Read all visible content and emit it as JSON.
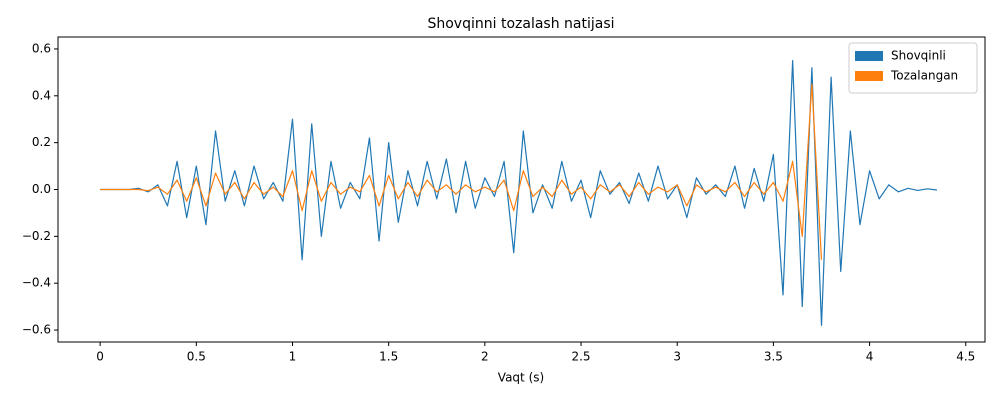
{
  "chart_data": {
    "type": "line",
    "title": "Shovqinni tozalash natijasi",
    "xlabel": "Vaqt (s)",
    "xlim": [
      -0.219,
      4.6
    ],
    "ylim": [
      -0.651,
      0.651
    ],
    "xticks": [
      0,
      0.5,
      1,
      1.5,
      2,
      2.5,
      3,
      3.5,
      4,
      4.5
    ],
    "yticks": [
      {
        "value": -0.6,
        "label": "−0.6"
      },
      {
        "value": -0.4,
        "label": "−0.4"
      },
      {
        "value": -0.2,
        "label": "−0.2"
      },
      {
        "value": 0,
        "label": "0.0"
      },
      0.2,
      0.4,
      0.6
    ],
    "legend": "upper right",
    "series": [
      {
        "name": "Shovqinli",
        "color": "#1f77b4",
        "x": [
          0,
          0.05,
          0.1,
          0.15,
          0.2,
          0.25,
          0.3,
          0.35,
          0.4,
          0.45,
          0.5,
          0.55,
          0.6,
          0.65,
          0.7,
          0.75,
          0.8,
          0.85,
          0.9,
          0.95,
          1,
          1.05,
          1.1,
          1.15,
          1.2,
          1.25,
          1.3,
          1.35,
          1.4,
          1.45,
          1.5,
          1.55,
          1.6,
          1.65,
          1.7,
          1.75,
          1.8,
          1.85,
          1.9,
          1.95,
          2,
          2.05,
          2.1,
          2.15,
          2.2,
          2.25,
          2.3,
          2.35,
          2.4,
          2.45,
          2.5,
          2.55,
          2.6,
          2.65,
          2.7,
          2.75,
          2.8,
          2.85,
          2.9,
          2.95,
          3,
          3.05,
          3.1,
          3.15,
          3.2,
          3.25,
          3.3,
          3.35,
          3.4,
          3.45,
          3.5,
          3.55,
          3.6,
          3.65,
          3.7,
          3.75,
          3.8,
          3.85,
          3.9,
          3.95,
          4,
          4.05,
          4.1,
          4.15,
          4.2,
          4.25,
          4.3,
          4.35
        ],
        "values": [
          0,
          0,
          0,
          0,
          0.005,
          -0.01,
          0.02,
          -0.07,
          0.12,
          -0.12,
          0.1,
          -0.15,
          0.25,
          -0.05,
          0.08,
          -0.07,
          0.1,
          -0.04,
          0.03,
          -0.05,
          0.3,
          -0.3,
          0.28,
          -0.2,
          0.12,
          -0.08,
          0.03,
          -0.04,
          0.22,
          -0.22,
          0.2,
          -0.14,
          0.08,
          -0.07,
          0.12,
          -0.04,
          0.13,
          -0.1,
          0.12,
          -0.08,
          0.05,
          -0.03,
          0.12,
          -0.27,
          0.25,
          -0.1,
          0.02,
          -0.08,
          0.12,
          -0.05,
          0.04,
          -0.12,
          0.08,
          -0.02,
          0.03,
          -0.06,
          0.07,
          -0.05,
          0.1,
          -0.04,
          0.02,
          -0.12,
          0.05,
          -0.02,
          0.02,
          -0.03,
          0.1,
          -0.08,
          0.09,
          -0.05,
          0.15,
          -0.45,
          0.55,
          -0.5,
          0.52,
          -0.58,
          0.48,
          -0.35,
          0.25,
          -0.15,
          0.08,
          -0.04,
          0.02,
          -0.01,
          0.005,
          -0.004,
          0.003,
          -0.002
        ]
      },
      {
        "name": "Tozalangan",
        "color": "#ff7f0e",
        "x": [
          0,
          0.05,
          0.1,
          0.15,
          0.2,
          0.25,
          0.3,
          0.35,
          0.4,
          0.45,
          0.5,
          0.55,
          0.6,
          0.65,
          0.7,
          0.75,
          0.8,
          0.85,
          0.9,
          0.95,
          1,
          1.05,
          1.1,
          1.15,
          1.2,
          1.25,
          1.3,
          1.35,
          1.4,
          1.45,
          1.5,
          1.55,
          1.6,
          1.65,
          1.7,
          1.75,
          1.8,
          1.85,
          1.9,
          1.95,
          2,
          2.05,
          2.1,
          2.15,
          2.2,
          2.25,
          2.3,
          2.35,
          2.4,
          2.45,
          2.5,
          2.55,
          2.6,
          2.65,
          2.7,
          2.75,
          2.8,
          2.85,
          2.9,
          2.95,
          3,
          3.05,
          3.1,
          3.15,
          3.2,
          3.25,
          3.3,
          3.35,
          3.4,
          3.45,
          3.5,
          3.55,
          3.6,
          3.65,
          3.7,
          3.75
        ],
        "values": [
          0,
          0,
          0,
          0,
          0,
          -0.005,
          0.01,
          -0.02,
          0.04,
          -0.05,
          0.05,
          -0.07,
          0.07,
          -0.02,
          0.03,
          -0.04,
          0.03,
          -0.02,
          0.01,
          -0.03,
          0.08,
          -0.09,
          0.08,
          -0.05,
          0.03,
          -0.02,
          0.01,
          -0.01,
          0.06,
          -0.07,
          0.06,
          -0.04,
          0.03,
          -0.03,
          0.04,
          -0.01,
          0.02,
          -0.02,
          0.02,
          -0.01,
          0.01,
          -0.01,
          0.04,
          -0.09,
          0.08,
          -0.03,
          0.01,
          -0.03,
          0.04,
          -0.02,
          0.01,
          -0.04,
          0.02,
          -0.01,
          0.02,
          -0.03,
          0.03,
          -0.02,
          0.01,
          -0.01,
          0.02,
          -0.07,
          0.02,
          -0.01,
          0.01,
          -0.01,
          0.03,
          -0.03,
          0.03,
          -0.02,
          0.03,
          -0.05,
          0.12,
          -0.2,
          0.45,
          -0.3
        ]
      }
    ]
  }
}
